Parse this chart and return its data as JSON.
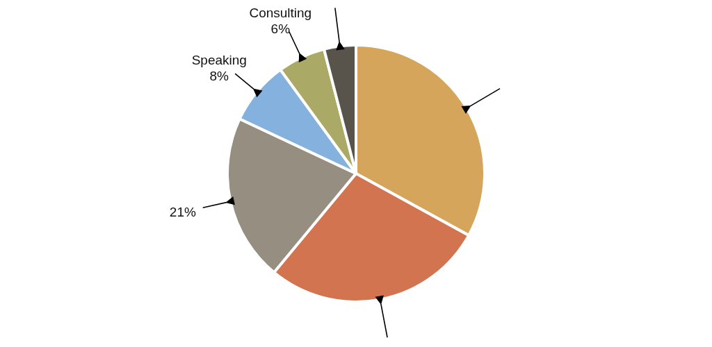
{
  "chart_data": {
    "type": "pie",
    "categories": [
      null,
      null,
      null,
      "Speaking",
      "Consulting",
      null
    ],
    "values": [
      33,
      28,
      21,
      8,
      6,
      4
    ],
    "value_labels": [
      null,
      null,
      "21%",
      "8%",
      "6%",
      null
    ],
    "colors": [
      "#d4a55a",
      "#d37450",
      "#978e82",
      "#85b1de",
      "#aaaa66",
      "#58544c"
    ]
  }
}
